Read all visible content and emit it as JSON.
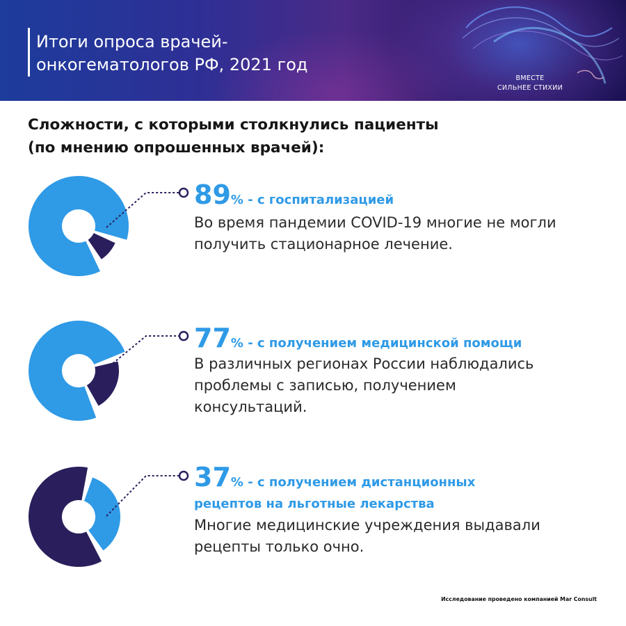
{
  "header": {
    "title": "Итоги опроса врачей-\nонкогематологов РФ, 2021 год",
    "slogan": "ВМЕСТЕ\nСИЛЬНЕЕ СТИХИИ"
  },
  "section_title": "Сложности, с которыми столкнулись пациенты\n(по мнению опрошенных врачей):",
  "colors": {
    "blue": "#2f9ae6",
    "navy": "#2a1f5c",
    "accent_text": "#2f9ae6"
  },
  "chart_data": {
    "type": "pie",
    "items": [
      {
        "value": 89,
        "value_label": "89",
        "percent_sign": "%",
        "headline": " - с госпитализацией",
        "description": "Во время пандемии COVID-19 многие не могли\nполучить стационарное лечение."
      },
      {
        "value": 77,
        "value_label": "77",
        "percent_sign": "%",
        "headline": " - с получением медицинской помощи",
        "description": "В различных регионах России наблюдались\nпроблемы с записью, получением\nконсультаций."
      },
      {
        "value": 37,
        "value_label": "37",
        "percent_sign": "%",
        "headline": " - с получением дистанционных рецептов на льготные лекарства",
        "description": "Многие медицинские учреждения выдавали\nрецепты только очно."
      }
    ]
  },
  "footnote": "Исследование проведено компанией Mar Consult"
}
